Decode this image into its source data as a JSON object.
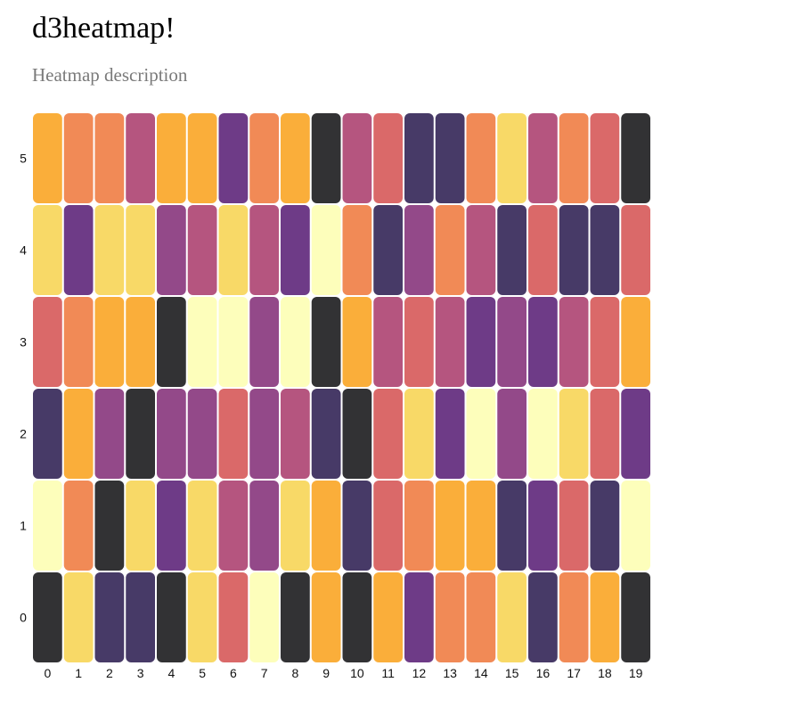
{
  "page": {
    "title": "d3heatmap!",
    "subtitle": "Heatmap description"
  },
  "palette": [
    "#323234",
    "#473a67",
    "#6e3b87",
    "#934989",
    "#b5557f",
    "#da6969",
    "#f18a56",
    "#faae3a",
    "#f8d967",
    "#fdfebb"
  ],
  "chart_data": {
    "type": "heatmap",
    "title": "",
    "xlabel": "",
    "ylabel": "",
    "x": [
      "0",
      "1",
      "2",
      "3",
      "4",
      "5",
      "6",
      "7",
      "8",
      "9",
      "10",
      "11",
      "12",
      "13",
      "14",
      "15",
      "16",
      "17",
      "18",
      "19"
    ],
    "y": [
      "0",
      "1",
      "2",
      "3",
      "4",
      "5"
    ],
    "value_range": [
      0,
      9
    ],
    "values": [
      [
        0,
        8,
        1,
        1,
        0,
        8,
        5,
        9,
        0,
        7,
        0,
        7,
        2,
        6,
        6,
        8,
        1,
        6,
        7,
        0
      ],
      [
        9,
        6,
        0,
        8,
        2,
        8,
        4,
        3,
        8,
        7,
        1,
        5,
        6,
        7,
        7,
        1,
        2,
        5,
        1,
        9
      ],
      [
        1,
        7,
        3,
        0,
        3,
        3,
        5,
        3,
        4,
        1,
        0,
        5,
        8,
        2,
        9,
        3,
        9,
        8,
        5,
        2
      ],
      [
        5,
        6,
        7,
        7,
        0,
        9,
        9,
        3,
        9,
        0,
        7,
        4,
        5,
        4,
        2,
        3,
        2,
        4,
        5,
        7
      ],
      [
        8,
        2,
        8,
        8,
        3,
        4,
        8,
        4,
        2,
        9,
        6,
        1,
        3,
        6,
        4,
        1,
        5,
        1,
        1,
        5
      ],
      [
        7,
        6,
        6,
        4,
        7,
        7,
        2,
        6,
        7,
        0,
        4,
        5,
        1,
        1,
        6,
        8,
        4,
        6,
        5,
        0
      ]
    ]
  }
}
